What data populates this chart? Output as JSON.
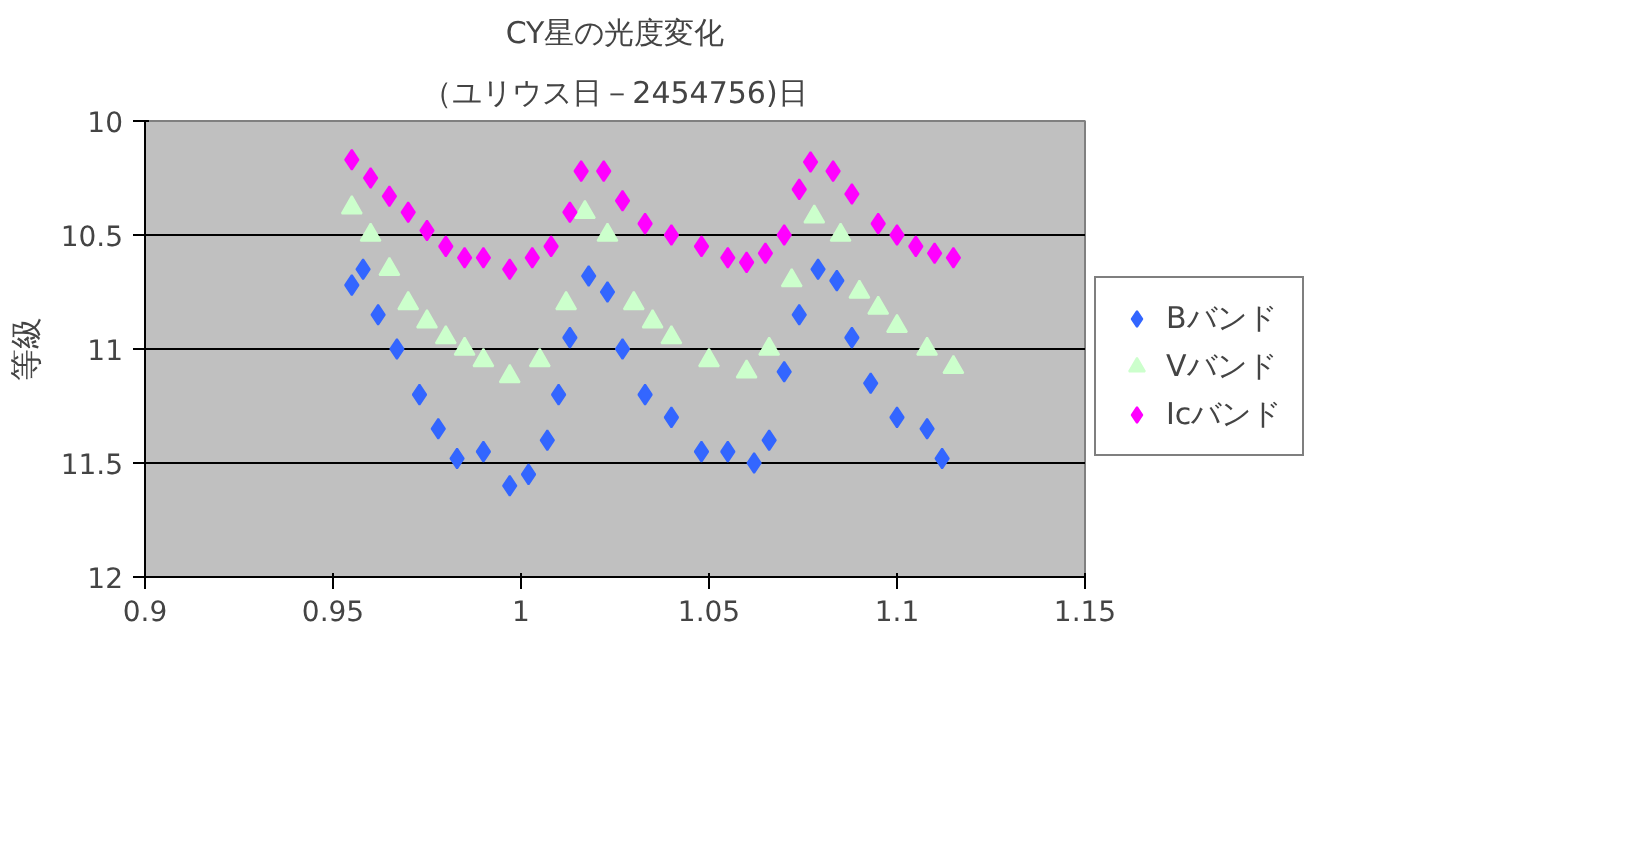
{
  "chart_data": {
    "type": "scatter",
    "title": "CY星の光度変化",
    "subtitle": "（ユリウス日－2454756)日",
    "ylabel": "等級",
    "xlim": [
      0.9,
      1.15
    ],
    "xticks": [
      0.9,
      0.95,
      1,
      1.05,
      1.1,
      1.15
    ],
    "ylim": [
      12,
      10
    ],
    "yticks": [
      10,
      10.5,
      11,
      11.5,
      12
    ],
    "grid": "y",
    "legend": "right",
    "series": [
      {
        "name": "Bバンド",
        "color": "#3366ff",
        "marker": "diamond",
        "x": [
          0.955,
          0.958,
          0.962,
          0.967,
          0.973,
          0.978,
          0.983,
          0.99,
          0.997,
          1.002,
          1.007,
          1.01,
          1.013,
          1.018,
          1.023,
          1.027,
          1.033,
          1.04,
          1.048,
          1.055,
          1.062,
          1.066,
          1.07,
          1.074,
          1.079,
          1.084,
          1.088,
          1.093,
          1.1,
          1.108,
          1.112
        ],
        "values": [
          10.72,
          10.65,
          10.85,
          11.0,
          11.2,
          11.35,
          11.48,
          11.45,
          11.6,
          11.55,
          11.4,
          11.2,
          10.95,
          10.68,
          10.75,
          11.0,
          11.2,
          11.3,
          11.45,
          11.45,
          11.5,
          11.4,
          11.1,
          10.85,
          10.65,
          10.7,
          10.95,
          11.15,
          11.3,
          11.35,
          11.48
        ]
      },
      {
        "name": "Vバンド",
        "color": "#ccffcc",
        "marker": "triangle",
        "x": [
          0.955,
          0.96,
          0.965,
          0.97,
          0.975,
          0.98,
          0.985,
          0.99,
          0.997,
          1.005,
          1.012,
          1.017,
          1.023,
          1.03,
          1.035,
          1.04,
          1.05,
          1.06,
          1.066,
          1.072,
          1.078,
          1.085,
          1.09,
          1.095,
          1.1,
          1.108,
          1.115
        ],
        "values": [
          10.38,
          10.5,
          10.65,
          10.8,
          10.88,
          10.95,
          11.0,
          11.05,
          11.12,
          11.05,
          10.8,
          10.4,
          10.5,
          10.8,
          10.88,
          10.95,
          11.05,
          11.1,
          11.0,
          10.7,
          10.42,
          10.5,
          10.75,
          10.82,
          10.9,
          11.0,
          11.08
        ]
      },
      {
        "name": "Icバンド",
        "color": "#ff00ff",
        "marker": "diamond",
        "x": [
          0.955,
          0.96,
          0.965,
          0.97,
          0.975,
          0.98,
          0.985,
          0.99,
          0.997,
          1.003,
          1.008,
          1.013,
          1.016,
          1.022,
          1.027,
          1.033,
          1.04,
          1.048,
          1.055,
          1.06,
          1.065,
          1.07,
          1.074,
          1.077,
          1.083,
          1.088,
          1.095,
          1.1,
          1.105,
          1.11,
          1.115
        ],
        "values": [
          10.17,
          10.25,
          10.33,
          10.4,
          10.48,
          10.55,
          10.6,
          10.6,
          10.65,
          10.6,
          10.55,
          10.4,
          10.22,
          10.22,
          10.35,
          10.45,
          10.5,
          10.55,
          10.6,
          10.62,
          10.58,
          10.5,
          10.3,
          10.18,
          10.22,
          10.32,
          10.45,
          10.5,
          10.55,
          10.58,
          10.6
        ]
      }
    ]
  }
}
